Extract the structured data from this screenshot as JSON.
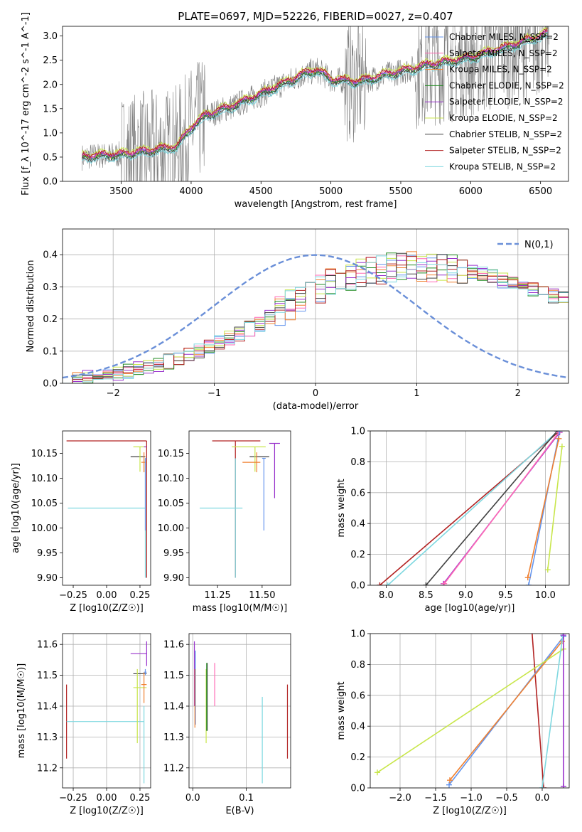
{
  "chart_data": [
    {
      "id": "spectrum",
      "type": "line",
      "title": "PLATE=0697, MJD=52226, FIBERID=0027, z=0.407",
      "xlabel": "wavelength [Angstrom, rest frame]",
      "ylabel": "Flux [f_λ 10^-17 erg cm^-2 s^-1 A^-1]",
      "xlim": [
        3080,
        6700
      ],
      "ylim": [
        0,
        3.2
      ],
      "xticks": [
        3500,
        4000,
        4500,
        5000,
        5500,
        6000,
        6500
      ],
      "yticks": [
        0.0,
        0.5,
        1.0,
        1.5,
        2.0,
        2.5,
        3.0
      ],
      "legend_position": "top-right",
      "data_color": "#808080",
      "continuum_x": [
        3220,
        3300,
        3500,
        3700,
        3900,
        4000,
        4100,
        4300,
        4500,
        4800,
        4900,
        5000,
        5200,
        5400,
        5700,
        6000,
        6300,
        6550
      ],
      "continuum_y": [
        0.5,
        0.52,
        0.55,
        0.62,
        0.72,
        1.1,
        1.35,
        1.55,
        1.8,
        2.2,
        2.3,
        2.1,
        2.05,
        2.2,
        2.4,
        2.55,
        2.8,
        3.05
      ],
      "series": [
        {
          "name": "Chabrier MILES, N_SSP=2",
          "color": "#6495ed",
          "offset": 0.0
        },
        {
          "name": "Salpeter MILES, N_SSP=2",
          "color": "#ff69b4",
          "offset": 0.03
        },
        {
          "name": "Kroupa MILES, N_SSP=2",
          "color": "#f08030",
          "offset": 0.01
        },
        {
          "name": "Chabrier ELODIE, N_SSP=2",
          "color": "#228b22",
          "offset": -0.02
        },
        {
          "name": "Salpeter ELODIE, N_SSP=2",
          "color": "#9932cc",
          "offset": 0.02
        },
        {
          "name": "Kroupa ELODIE, N_SSP=2",
          "color": "#c8e64b",
          "offset": 0.08
        },
        {
          "name": "Chabrier STELIB, N_SSP=2",
          "color": "#404040",
          "offset": -0.05
        },
        {
          "name": "Salpeter STELIB, N_SSP=2",
          "color": "#b22222",
          "offset": 0.05
        },
        {
          "name": "Kroupa STELIB, N_SSP=2",
          "color": "#7fd8e0",
          "offset": -0.08
        }
      ]
    },
    {
      "id": "residuals",
      "type": "histogram",
      "xlabel": "(data-model)/error",
      "ylabel": "Normed distribution",
      "xlim": [
        -2.5,
        2.5
      ],
      "ylim": [
        0,
        0.48
      ],
      "xticks": [
        -2,
        -1,
        0,
        1,
        2
      ],
      "yticks": [
        0.0,
        0.1,
        0.2,
        0.3,
        0.4
      ],
      "grid": true,
      "legend_position": "top-right",
      "reference_curve": {
        "name": "N(0,1)",
        "color": "#6a8fd8",
        "mu": 0,
        "sigma": 1
      },
      "bin_width": 0.1,
      "bin_start": -2.5,
      "series_heights": {
        "base": [
          0.012,
          0.015,
          0.018,
          0.022,
          0.026,
          0.03,
          0.038,
          0.045,
          0.05,
          0.06,
          0.068,
          0.078,
          0.09,
          0.1,
          0.115,
          0.125,
          0.14,
          0.155,
          0.17,
          0.185,
          0.205,
          0.225,
          0.245,
          0.26,
          0.28,
          0.295,
          0.31,
          0.325,
          0.335,
          0.345,
          0.35,
          0.355,
          0.36,
          0.362,
          0.365,
          0.365,
          0.362,
          0.36,
          0.355,
          0.35,
          0.345,
          0.34,
          0.33,
          0.32,
          0.31,
          0.3,
          0.29,
          0.28,
          0.27,
          0.262
        ]
      }
    },
    {
      "id": "age_vs_Z",
      "type": "errorbar",
      "xlabel": "Z [log10(Z/Z☉)]",
      "ylabel": "age [log10(age/yr)]",
      "xlim": [
        -0.33,
        0.33
      ],
      "ylim": [
        9.885,
        10.195
      ],
      "xticks": [
        -0.25,
        0.0,
        0.25
      ],
      "yticks": [
        9.9,
        9.95,
        10.0,
        10.05,
        10.1,
        10.15
      ],
      "points": [
        {
          "color": "#b22222",
          "x": 0.3,
          "xerr": [
            0.6,
            0.0
          ],
          "y": 10.175,
          "yerr": [
            0.275,
            0.0
          ]
        },
        {
          "color": "#7fd8e0",
          "x": 0.29,
          "xerr": [
            0.58,
            0.0
          ],
          "y": 10.04,
          "yerr": [
            0.14,
            0.1
          ]
        },
        {
          "color": "#404040",
          "x": 0.24,
          "xerr": [
            0.06,
            0.05
          ],
          "y": 10.143,
          "yerr": [
            0.0,
            0.0
          ]
        },
        {
          "color": "#c8e64b",
          "x": 0.25,
          "xerr": [
            0.05,
            0.04
          ],
          "y": 10.163,
          "yerr": [
            0.05,
            0.0
          ]
        },
        {
          "color": "#f08030",
          "x": 0.28,
          "xerr": [
            0.02,
            0.02
          ],
          "y": 10.132,
          "yerr": [
            0.02,
            0.02
          ]
        },
        {
          "color": "#9932cc",
          "x": 0.29,
          "xerr": [
            0.01,
            0.01
          ],
          "y": 10.163,
          "yerr": [
            0.0,
            0.0
          ]
        },
        {
          "color": "#6495ed",
          "x": 0.29,
          "xerr": [
            0.0,
            0.01
          ],
          "y": 10.14,
          "yerr": [
            0.145,
            0.0
          ]
        }
      ]
    },
    {
      "id": "age_vs_mass",
      "type": "errorbar",
      "xlabel": "mass [log10(M/M☉)]",
      "ylabel": "",
      "xlim": [
        11.09,
        11.66
      ],
      "ylim": [
        9.885,
        10.195
      ],
      "xticks": [
        11.25,
        11.5
      ],
      "yticks": [
        9.9,
        9.95,
        10.0,
        10.05,
        10.1,
        10.15
      ],
      "points": [
        {
          "color": "#b22222",
          "x": 11.35,
          "xerr": [
            0.13,
            0.14
          ],
          "y": 10.175,
          "yerr": [
            0.275,
            0.0
          ]
        },
        {
          "color": "#7fd8e0",
          "x": 11.35,
          "xerr": [
            0.2,
            0.04
          ],
          "y": 10.04,
          "yerr": [
            0.14,
            0.1
          ]
        },
        {
          "color": "#404040",
          "x": 11.51,
          "xerr": [
            0.08,
            0.03
          ],
          "y": 10.143,
          "yerr": [
            0.0,
            0.0
          ]
        },
        {
          "color": "#c8e64b",
          "x": 11.46,
          "xerr": [
            0.13,
            0.06
          ],
          "y": 10.163,
          "yerr": [
            0.05,
            0.0
          ]
        },
        {
          "color": "#f08030",
          "x": 11.47,
          "xerr": [
            0.08,
            0.02
          ],
          "y": 10.132,
          "yerr": [
            0.02,
            0.02
          ]
        },
        {
          "color": "#9932cc",
          "x": 11.57,
          "xerr": [
            0.03,
            0.03
          ],
          "y": 10.17,
          "yerr": [
            0.11,
            0.0
          ]
        },
        {
          "color": "#6495ed",
          "x": 11.51,
          "xerr": [
            0.01,
            0.01
          ],
          "y": 10.14,
          "yerr": [
            0.145,
            0.0
          ]
        }
      ]
    },
    {
      "id": "massweight_vs_age",
      "type": "line",
      "xlabel": "age [log10(age/yr)]",
      "ylabel": "mass weight",
      "xlim": [
        7.8,
        10.3
      ],
      "ylim": [
        0,
        1.0
      ],
      "xticks": [
        8.0,
        8.5,
        9.0,
        9.5,
        10.0
      ],
      "yticks": [
        0.0,
        0.2,
        0.4,
        0.6,
        0.8,
        1.0
      ],
      "grid": true,
      "lines": [
        {
          "color": "#b22222",
          "x": [
            7.92,
            10.18
          ],
          "y": [
            0.0,
            1.0
          ]
        },
        {
          "color": "#7fd8e0",
          "x": [
            8.02,
            10.16
          ],
          "y": [
            0.0,
            1.0
          ]
        },
        {
          "color": "#404040",
          "x": [
            8.5,
            10.15
          ],
          "y": [
            0.0,
            1.0
          ]
        },
        {
          "color": "#9932cc",
          "x": [
            8.72,
            10.18
          ],
          "y": [
            0.01,
            0.99
          ]
        },
        {
          "color": "#ff69b4",
          "x": [
            8.73,
            10.17
          ],
          "y": [
            0.01,
            0.99
          ]
        },
        {
          "color": "#6495ed",
          "x": [
            9.79,
            10.18
          ],
          "y": [
            0.0,
            1.0
          ]
        },
        {
          "color": "#f08030",
          "x": [
            9.78,
            10.17
          ],
          "y": [
            0.05,
            0.95
          ]
        },
        {
          "color": "#c8e64b",
          "x": [
            10.03,
            10.21
          ],
          "y": [
            0.1,
            0.9
          ]
        }
      ]
    },
    {
      "id": "mass_vs_Z",
      "type": "errorbar",
      "xlabel": "Z [log10(Z/Z☉)]",
      "ylabel": "mass [log10(M/M☉)]",
      "xlim": [
        -0.33,
        0.33
      ],
      "ylim": [
        11.135,
        11.635
      ],
      "xticks": [
        -0.25,
        0.0,
        0.25
      ],
      "yticks": [
        11.2,
        11.3,
        11.4,
        11.5,
        11.6
      ],
      "grid": true,
      "points": [
        {
          "color": "#b22222",
          "x": -0.3,
          "xerr": [
            0.0,
            0.0
          ],
          "y": 11.35,
          "yerr": [
            0.12,
            0.12
          ]
        },
        {
          "color": "#7fd8e0",
          "x": 0.28,
          "xerr": [
            0.58,
            0.0
          ],
          "y": 11.35,
          "yerr": [
            0.2,
            0.05
          ]
        },
        {
          "color": "#404040",
          "x": 0.25,
          "xerr": [
            0.05,
            0.05
          ],
          "y": 11.505,
          "yerr": [
            0.0,
            0.0
          ]
        },
        {
          "color": "#c8e64b",
          "x": 0.23,
          "xerr": [
            0.03,
            0.07
          ],
          "y": 11.46,
          "yerr": [
            0.18,
            0.06
          ]
        },
        {
          "color": "#f08030",
          "x": 0.28,
          "xerr": [
            0.02,
            0.02
          ],
          "y": 11.47,
          "yerr": [
            0.06,
            0.04
          ]
        },
        {
          "color": "#9932cc",
          "x": 0.24,
          "xerr": [
            0.06,
            0.06
          ],
          "y": 11.57,
          "yerr": [
            0.0,
            0.0
          ]
        },
        {
          "color": "#9932cc",
          "x": 0.3,
          "xerr": [
            0.0,
            0.0
          ],
          "y": 11.57,
          "yerr": [
            0.04,
            0.04
          ]
        },
        {
          "color": "#6495ed",
          "x": 0.29,
          "xerr": [
            0.01,
            0.01
          ],
          "y": 11.51,
          "yerr": [
            0.01,
            0.01
          ]
        }
      ]
    },
    {
      "id": "mass_vs_EBV",
      "type": "errorbar",
      "xlabel": "E(B-V)",
      "ylabel": "",
      "xlim": [
        -0.007,
        0.183
      ],
      "ylim": [
        11.135,
        11.635
      ],
      "xticks": [
        0.0,
        0.1
      ],
      "yticks": [
        11.2,
        11.3,
        11.4,
        11.5,
        11.6
      ],
      "grid": true,
      "points": [
        {
          "color": "#9932cc",
          "x": 0.003,
          "y": 11.57,
          "yerr": [
            0.17,
            0.04
          ]
        },
        {
          "color": "#6495ed",
          "x": 0.005,
          "y": 11.51,
          "yerr": [
            0.17,
            0.07
          ]
        },
        {
          "color": "#f08030",
          "x": 0.004,
          "y": 11.46,
          "yerr": [
            0.13,
            0.06
          ]
        },
        {
          "color": "#404040",
          "x": 0.027,
          "y": 11.44,
          "yerr": [
            0.12,
            0.1
          ]
        },
        {
          "color": "#c8e64b",
          "x": 0.025,
          "y": 11.4,
          "yerr": [
            0.12,
            0.12
          ]
        },
        {
          "color": "#228b22",
          "x": 0.026,
          "y": 11.43,
          "yerr": [
            0.11,
            0.11
          ]
        },
        {
          "color": "#ff69b4",
          "x": 0.041,
          "y": 11.47,
          "yerr": [
            0.07,
            0.07
          ]
        },
        {
          "color": "#7fd8e0",
          "x": 0.13,
          "y": 11.29,
          "yerr": [
            0.14,
            0.14
          ]
        },
        {
          "color": "#b22222",
          "x": 0.177,
          "y": 11.35,
          "yerr": [
            0.12,
            0.12
          ]
        }
      ]
    },
    {
      "id": "massweight_vs_Z",
      "type": "line",
      "xlabel": "Z [log10(Z/Z☉)]",
      "ylabel": "mass weight",
      "xlim": [
        -2.42,
        0.38
      ],
      "ylim": [
        0,
        1.0
      ],
      "xticks": [
        -2.0,
        -1.5,
        -1.0,
        -0.5,
        0.0
      ],
      "yticks": [
        0.0,
        0.2,
        0.4,
        0.6,
        0.8,
        1.0
      ],
      "grid": true,
      "lines": [
        {
          "color": "#b22222",
          "x": [
            -0.15,
            0.02
          ],
          "y": [
            1.05,
            0.0
          ]
        },
        {
          "color": "#6495ed",
          "x": [
            -1.31,
            0.3
          ],
          "y": [
            0.02,
            0.98
          ]
        },
        {
          "color": "#f08030",
          "x": [
            -1.3,
            0.28
          ],
          "y": [
            0.05,
            0.95
          ]
        },
        {
          "color": "#c8e64b",
          "x": [
            -2.32,
            0.3
          ],
          "y": [
            0.1,
            0.9
          ]
        },
        {
          "color": "#7fd8e0",
          "x": [
            0.0,
            0.29
          ],
          "y": [
            0.0,
            0.99
          ]
        },
        {
          "color": "#9932cc",
          "x": [
            0.3,
            0.3
          ],
          "y": [
            0.01,
            0.99
          ]
        }
      ]
    }
  ]
}
